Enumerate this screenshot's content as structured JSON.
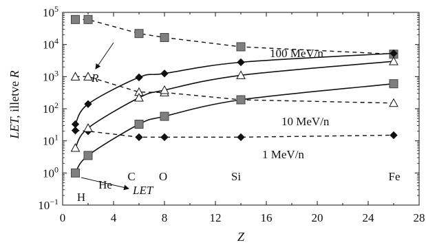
{
  "chart_data": {
    "type": "line",
    "yscale": "log",
    "xlim": [
      0,
      28
    ],
    "ylim_exp": [
      -1,
      5
    ],
    "xticks": [
      "0",
      "4",
      "8",
      "12",
      "16",
      "20",
      "24",
      "28"
    ],
    "ytick_exps": [
      "−1",
      "0",
      "1",
      "2",
      "3",
      "4",
      "5"
    ],
    "ytick_base": "10",
    "xlabel": "Z",
    "ylabel": "LET, illetve R",
    "x_values": [
      1,
      2,
      6,
      8,
      14,
      26
    ],
    "series": [
      {
        "group": "R",
        "energy": "100 MeV/n",
        "marker": "square",
        "dash": true,
        "values": [
          60000,
          60000,
          22000,
          16500,
          8500,
          5000
        ]
      },
      {
        "group": "R",
        "energy": "10 MeV/n",
        "marker": "triangle",
        "dash": true,
        "values": [
          1000,
          1000,
          330,
          320,
          190,
          150
        ]
      },
      {
        "group": "R",
        "energy": "1 MeV/n",
        "marker": "diamond",
        "dash": true,
        "values": [
          21,
          20,
          13,
          13,
          13,
          15
        ]
      },
      {
        "group": "LET",
        "energy": "100 MeV/n",
        "marker": "diamond",
        "dash": false,
        "values": [
          33,
          140,
          950,
          1250,
          2800,
          5300
        ]
      },
      {
        "group": "LET",
        "energy": "10 MeV/n",
        "marker": "triangle",
        "dash": false,
        "values": [
          6,
          25,
          220,
          380,
          1100,
          3000
        ]
      },
      {
        "group": "LET",
        "energy": "1 MeV/n",
        "marker": "square",
        "dash": false,
        "values": [
          1,
          3.5,
          33,
          58,
          190,
          600
        ]
      }
    ],
    "element_labels": [
      {
        "text": "H",
        "z": 1
      },
      {
        "text": "He",
        "z": 2
      },
      {
        "text": "C",
        "z": 6
      },
      {
        "text": "O",
        "z": 8
      },
      {
        "text": "Si",
        "z": 14
      },
      {
        "text": "Fe",
        "z": 26
      }
    ],
    "annotations": {
      "energy_100": "100 MeV/n",
      "energy_10": "10 MeV/n",
      "energy_1": "1 MeV/n",
      "R": "R",
      "LET": "LET"
    }
  }
}
